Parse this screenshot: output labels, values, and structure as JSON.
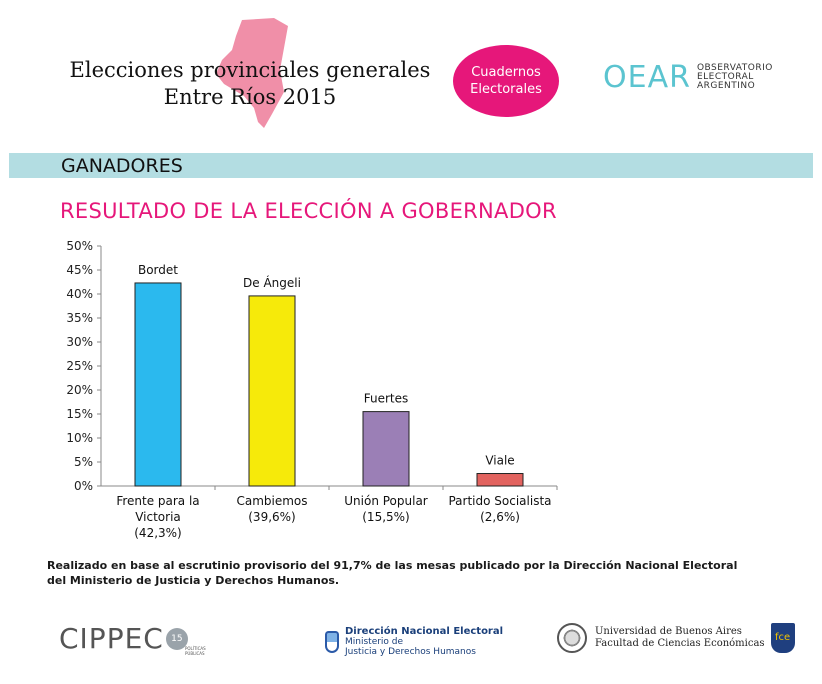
{
  "header": {
    "title_line1": "Elecciones provinciales generales",
    "title_line2": "Entre Ríos 2015",
    "badge_line1": "Cuadernos",
    "badge_line2": "Electorales",
    "oear_mark": "OEAR",
    "oear_line1": "OBSERVATORIO",
    "oear_line2": "ELECTORAL",
    "oear_line3": "ARGENTINO"
  },
  "section": {
    "label": "GANADORES"
  },
  "chart_title": "RESULTADO DE LA ELECCIÓN A GOBERNADOR",
  "chart_data": {
    "type": "bar",
    "title": "RESULTADO DE LA ELECCIÓN A GOBERNADOR",
    "candidates": [
      "Bordet",
      "De Ángeli",
      "Fuertes",
      "Viale"
    ],
    "categories": [
      [
        "Frente para la",
        "Victoria",
        "(42,3%)"
      ],
      [
        "Cambiemos",
        "(39,6%)"
      ],
      [
        "Unión Popular",
        "(15,5%)"
      ],
      [
        "Partido Socialista",
        "(2,6%)"
      ]
    ],
    "values": [
      42.3,
      39.6,
      15.5,
      2.6
    ],
    "colors": [
      "#2bb9ee",
      "#f6ea0a",
      "#9b7fb6",
      "#e2635f"
    ],
    "ylim": [
      0,
      50
    ],
    "yticks": [
      "0%",
      "5%",
      "10%",
      "15%",
      "20%",
      "25%",
      "30%",
      "35%",
      "40%",
      "45%",
      "50%"
    ],
    "xlabel": "",
    "ylabel": ""
  },
  "footnote_line1": "Realizado en base al escrutinio provisorio del 91,7% de las mesas publicado por la Dirección Nacional Electoral",
  "footnote_line2": "del Ministerio de Justicia y Derechos Humanos.",
  "logos": {
    "cippec": "CIPPEC",
    "cippec_badge": "15",
    "cippec_sub1": "POLÍTICAS",
    "cippec_sub2": "PÚBLICAS",
    "dne_line1": "Dirección Nacional Electoral",
    "dne_line2": "Ministerio de",
    "dne_line3": "Justicia y Derechos Humanos",
    "uba_line1": "Universidad de Buenos Aires",
    "uba_line2": "Facultad de Ciencias Económicas",
    "fce": "fce"
  }
}
